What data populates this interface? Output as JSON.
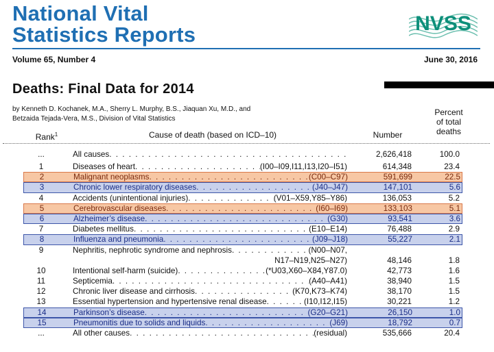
{
  "masthead": {
    "title_line1": "National Vital",
    "title_line2": "Statistics Reports",
    "logo_text": "NVSS",
    "brand_color": "#1f6fb3",
    "volume": "Volume 65, Number 4",
    "date": "June 30, 2016"
  },
  "report": {
    "title": "Deaths: Final Data for 2014",
    "authors_line1": "by Kenneth D. Kochanek, M.A., Sherry L. Murphy, B.S., Jiaquan Xu, M.D., and",
    "authors_line2": "Betzaida Tejada-Vera, M.S., Division of Vital Statistics"
  },
  "table": {
    "headers": {
      "rank": "Rank",
      "rank_footnote": "1",
      "cause": "Cause of death (based on ICD–10)",
      "number": "Number",
      "percent_line1": "Percent",
      "percent_line2": "of total",
      "percent_line3": "deaths"
    },
    "rows": [
      {
        "rank": "...",
        "cause": "All causes",
        "codes": "",
        "number": "2,626,418",
        "percent": "100.0",
        "highlight": "none"
      },
      {
        "rank": "1",
        "cause": "Diseases of heart",
        "codes": "(I00–I09,I11,I13,I20–I51)",
        "number": "614,348",
        "percent": "23.4",
        "highlight": "none"
      },
      {
        "rank": "2",
        "cause": "Malignant neoplasms",
        "codes": "(C00–C97)",
        "number": "591,699",
        "percent": "22.5",
        "highlight": "orange"
      },
      {
        "rank": "3",
        "cause": "Chronic lower respiratory diseases",
        "codes": "(J40–J47)",
        "number": "147,101",
        "percent": "5.6",
        "highlight": "blue"
      },
      {
        "rank": "4",
        "cause": "Accidents (unintentional injuries)",
        "codes": "(V01–X59,Y85–Y86)",
        "number": "136,053",
        "percent": "5.2",
        "highlight": "none"
      },
      {
        "rank": "5",
        "cause": "Cerebrovascular diseases",
        "codes": "(I60–I69)",
        "number": "133,103",
        "percent": "5.1",
        "highlight": "orange"
      },
      {
        "rank": "6",
        "cause": "Alzheimer’s disease",
        "codes": "(G30)",
        "number": "93,541",
        "percent": "3.6",
        "highlight": "blue"
      },
      {
        "rank": "7",
        "cause": "Diabetes mellitus",
        "codes": "(E10–E14)",
        "number": "76,488",
        "percent": "2.9",
        "highlight": "none"
      },
      {
        "rank": "8",
        "cause": "Influenza and pneumonia",
        "codes": "(J09–J18)",
        "number": "55,227",
        "percent": "2.1",
        "highlight": "blue"
      },
      {
        "rank": "9",
        "cause": "Nephritis, nephrotic syndrome and nephrosis",
        "codes": "(N00–N07,",
        "codes_line2": "N17–N19,N25–N27)",
        "number": "48,146",
        "percent": "1.8",
        "highlight": "none"
      },
      {
        "rank": "10",
        "cause": "Intentional self-harm (suicide)",
        "codes": "(*U03,X60–X84,Y87.0)",
        "number": "42,773",
        "percent": "1.6",
        "highlight": "none"
      },
      {
        "rank": "11",
        "cause": "Septicemia",
        "codes": "(A40–A41)",
        "number": "38,940",
        "percent": "1.5",
        "highlight": "none"
      },
      {
        "rank": "12",
        "cause": "Chronic liver disease and cirrhosis",
        "codes": "(K70,K73–K74)",
        "number": "38,170",
        "percent": "1.5",
        "highlight": "none"
      },
      {
        "rank": "13",
        "cause": "Essential hypertension and hypertensive renal disease",
        "codes": "(I10,I12,I15)",
        "number": "30,221",
        "percent": "1.2",
        "highlight": "none"
      },
      {
        "rank": "14",
        "cause": "Parkinson’s disease",
        "codes": "(G20–G21)",
        "number": "26,150",
        "percent": "1.0",
        "highlight": "blue"
      },
      {
        "rank": "15",
        "cause": "Pneumonitis due to solids and liquids",
        "codes": "(J69)",
        "number": "18,792",
        "percent": "0.7",
        "highlight": "blue"
      },
      {
        "rank": "...",
        "cause": "All other causes",
        "codes": "(residual)",
        "number": "535,666",
        "percent": "20.4",
        "highlight": "none"
      }
    ],
    "highlight_colors": {
      "orange": "#f7c7a4",
      "blue": "#c8d1ec"
    }
  }
}
